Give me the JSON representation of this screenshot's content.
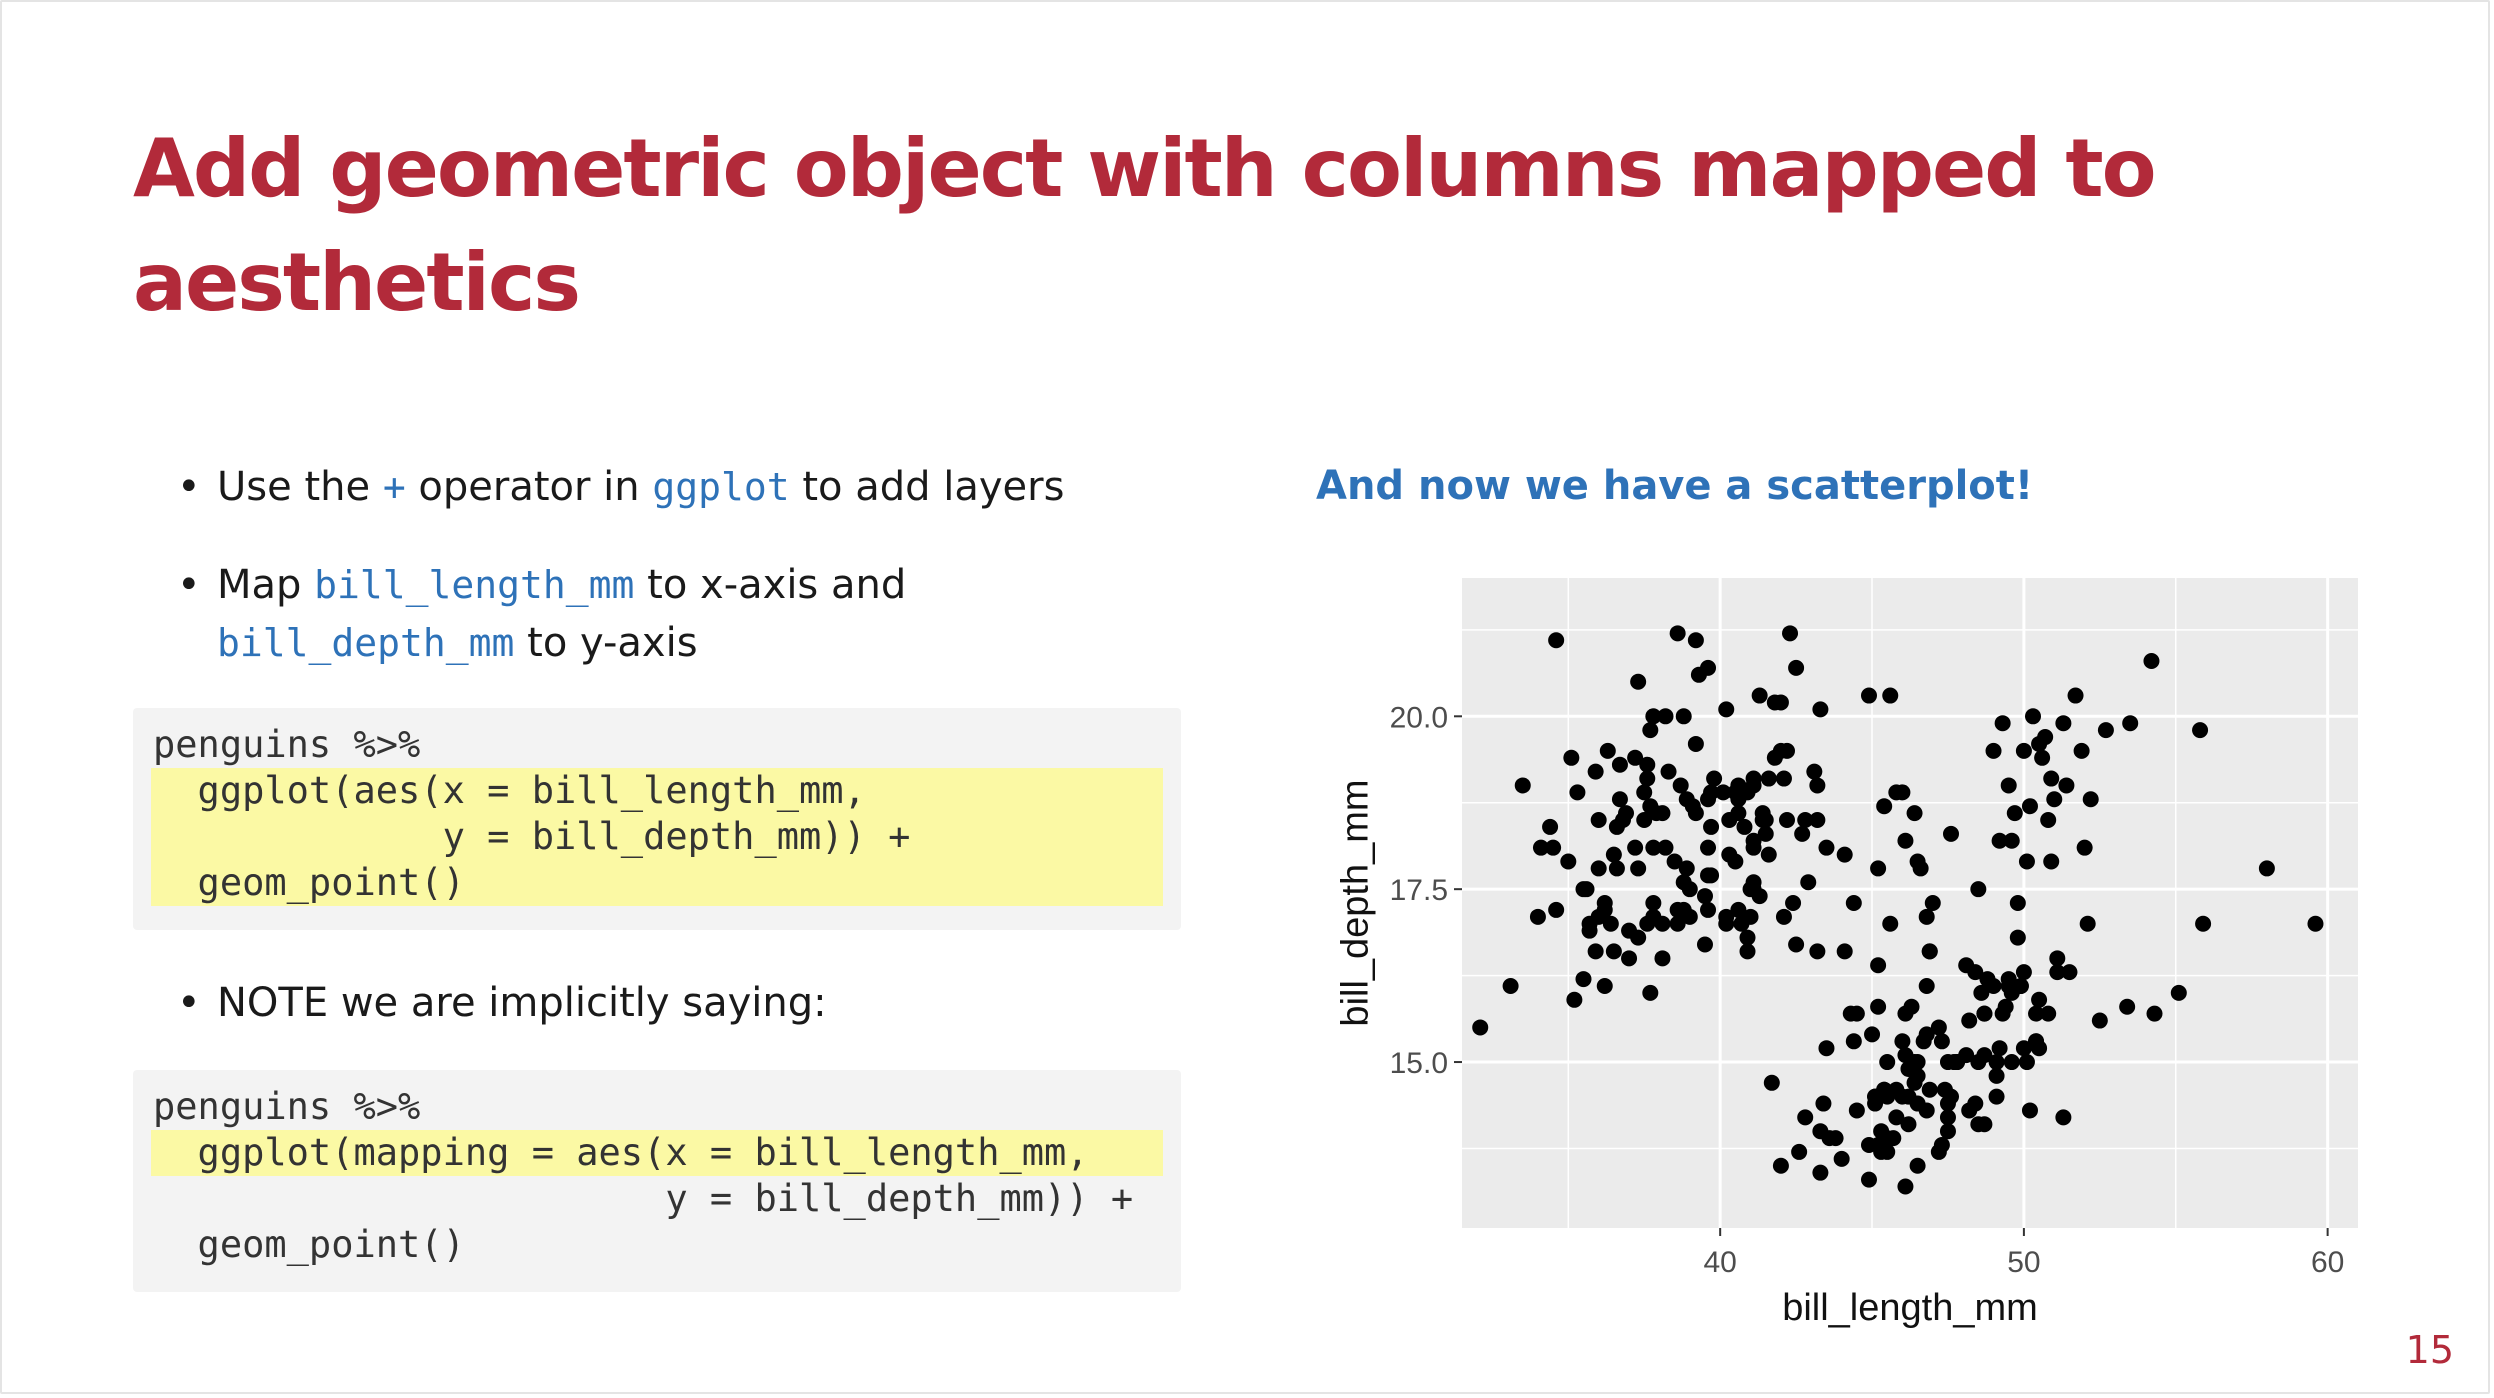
{
  "slide": {
    "title_line1": "Add geometric object with columns mapped to",
    "title_line2": "aesthetics",
    "page_number": "15"
  },
  "bullets": {
    "b1": {
      "pre": "Use the ",
      "op": "+",
      "mid": " operator in ",
      "code": "ggplot",
      "post": " to add layers"
    },
    "b2": {
      "pre": "Map ",
      "code1": "bill_length_mm",
      "mid": " to x-axis and",
      "code2": "bill_depth_mm",
      "post": " to y-axis"
    },
    "b3": {
      "text": "NOTE we are implicitly saying:"
    }
  },
  "code_block_1": [
    "penguins %>%",
    "  ggplot(aes(x = bill_length_mm,",
    "             y = bill_depth_mm)) +",
    "  geom_point()"
  ],
  "code_block_2": [
    "penguins %>%",
    "  ggplot(mapping = aes(x = bill_length_mm,",
    "                       y = bill_depth_mm)) +",
    "  geom_point()"
  ],
  "right": {
    "subhead": "And now we have a scatterplot!"
  },
  "chart_data": {
    "type": "scatter",
    "xlabel": "bill_length_mm",
    "ylabel": "bill_depth_mm",
    "xlim": [
      31.5,
      61.0
    ],
    "ylim": [
      12.6,
      22.0
    ],
    "x_ticks": [
      40,
      50,
      60
    ],
    "x_tick_labels": [
      "40",
      "50",
      "60"
    ],
    "y_ticks": [
      15.0,
      17.5,
      20.0
    ],
    "y_tick_labels": [
      "15.0",
      "17.5",
      "20.0"
    ],
    "grid": true,
    "panel_color": "#ebebeb",
    "point_color": "#000000",
    "points": [
      [
        32.1,
        15.5
      ],
      [
        33.1,
        16.1
      ],
      [
        33.5,
        19.0
      ],
      [
        34.0,
        17.1
      ],
      [
        34.1,
        18.1
      ],
      [
        34.4,
        18.4
      ],
      [
        34.5,
        18.1
      ],
      [
        34.6,
        17.2
      ],
      [
        34.6,
        21.1
      ],
      [
        35.0,
        17.9
      ],
      [
        35.1,
        19.4
      ],
      [
        35.2,
        15.9
      ],
      [
        35.3,
        18.9
      ],
      [
        35.5,
        16.2
      ],
      [
        35.5,
        17.5
      ],
      [
        35.6,
        17.5
      ],
      [
        35.7,
        16.9
      ],
      [
        35.7,
        17.0
      ],
      [
        35.9,
        16.6
      ],
      [
        35.9,
        19.2
      ],
      [
        36.0,
        17.1
      ],
      [
        36.0,
        17.8
      ],
      [
        36.0,
        18.5
      ],
      [
        36.2,
        16.1
      ],
      [
        36.2,
        17.2
      ],
      [
        36.2,
        17.3
      ],
      [
        36.3,
        19.5
      ],
      [
        36.4,
        17.0
      ],
      [
        36.5,
        16.6
      ],
      [
        36.5,
        18.0
      ],
      [
        36.6,
        17.8
      ],
      [
        36.6,
        18.4
      ],
      [
        36.7,
        18.8
      ],
      [
        36.7,
        19.3
      ],
      [
        36.8,
        18.5
      ],
      [
        36.9,
        18.6
      ],
      [
        37.0,
        16.5
      ],
      [
        37.0,
        16.9
      ],
      [
        37.2,
        18.1
      ],
      [
        37.2,
        19.4
      ],
      [
        37.3,
        16.8
      ],
      [
        37.3,
        17.8
      ],
      [
        37.3,
        20.5
      ],
      [
        37.5,
        18.5
      ],
      [
        37.5,
        18.9
      ],
      [
        37.6,
        17.0
      ],
      [
        37.6,
        19.1
      ],
      [
        37.6,
        19.3
      ],
      [
        37.7,
        16.0
      ],
      [
        37.7,
        18.7
      ],
      [
        37.7,
        19.8
      ],
      [
        37.8,
        17.1
      ],
      [
        37.8,
        17.3
      ],
      [
        37.8,
        18.1
      ],
      [
        37.8,
        20.0
      ],
      [
        37.9,
        18.6
      ],
      [
        38.1,
        16.5
      ],
      [
        38.1,
        17.0
      ],
      [
        38.1,
        18.6
      ],
      [
        38.2,
        18.1
      ],
      [
        38.2,
        20.0
      ],
      [
        38.3,
        19.2
      ],
      [
        38.5,
        17.9
      ],
      [
        38.6,
        17.0
      ],
      [
        38.6,
        17.2
      ],
      [
        38.6,
        21.2
      ],
      [
        38.7,
        19.0
      ],
      [
        38.8,
        17.2
      ],
      [
        38.8,
        17.6
      ],
      [
        38.8,
        20.0
      ],
      [
        38.9,
        17.8
      ],
      [
        38.9,
        18.8
      ],
      [
        39.0,
        17.1
      ],
      [
        39.0,
        17.5
      ],
      [
        39.1,
        18.7
      ],
      [
        39.2,
        18.6
      ],
      [
        39.2,
        19.6
      ],
      [
        39.2,
        21.1
      ],
      [
        39.3,
        20.6
      ],
      [
        39.5,
        16.7
      ],
      [
        39.5,
        17.4
      ],
      [
        39.6,
        17.2
      ],
      [
        39.6,
        17.7
      ],
      [
        39.6,
        18.1
      ],
      [
        39.6,
        18.8
      ],
      [
        39.6,
        20.7
      ],
      [
        39.7,
        17.7
      ],
      [
        39.7,
        18.4
      ],
      [
        39.7,
        18.9
      ],
      [
        39.8,
        19.1
      ],
      [
        40.1,
        18.9
      ],
      [
        40.2,
        17.0
      ],
      [
        40.2,
        17.1
      ],
      [
        40.2,
        20.1
      ],
      [
        40.3,
        18.0
      ],
      [
        40.3,
        18.5
      ],
      [
        40.5,
        17.9
      ],
      [
        40.5,
        18.9
      ],
      [
        40.6,
        17.2
      ],
      [
        40.6,
        18.6
      ],
      [
        40.6,
        18.8
      ],
      [
        40.6,
        19.0
      ],
      [
        40.7,
        17.0
      ],
      [
        40.8,
        18.4
      ],
      [
        40.8,
        18.9
      ],
      [
        40.9,
        16.6
      ],
      [
        40.9,
        16.8
      ],
      [
        40.9,
        18.9
      ],
      [
        41.0,
        17.1
      ],
      [
        41.0,
        17.5
      ],
      [
        41.1,
        17.5
      ],
      [
        41.1,
        17.6
      ],
      [
        41.1,
        18.1
      ],
      [
        41.1,
        18.2
      ],
      [
        41.1,
        19.0
      ],
      [
        41.1,
        19.1
      ],
      [
        41.3,
        17.4
      ],
      [
        41.3,
        20.3
      ],
      [
        41.4,
        18.5
      ],
      [
        41.4,
        18.6
      ],
      [
        41.5,
        18.3
      ],
      [
        41.5,
        18.5
      ],
      [
        41.6,
        18.0
      ],
      [
        41.6,
        19.1
      ],
      [
        41.7,
        14.7
      ],
      [
        41.8,
        19.4
      ],
      [
        41.8,
        20.2
      ],
      [
        42.0,
        19.5
      ],
      [
        42.0,
        20.2
      ],
      [
        42.1,
        17.1
      ],
      [
        42.1,
        19.1
      ],
      [
        42.2,
        18.5
      ],
      [
        42.2,
        19.5
      ],
      [
        42.3,
        21.2
      ],
      [
        42.4,
        17.3
      ],
      [
        42.5,
        16.7
      ],
      [
        42.5,
        20.7
      ],
      [
        42.7,
        18.3
      ],
      [
        42.8,
        18.5
      ],
      [
        42.9,
        17.6
      ],
      [
        43.1,
        19.2
      ],
      [
        43.2,
        18.5
      ],
      [
        43.2,
        19.0
      ],
      [
        43.3,
        20.1
      ],
      [
        43.4,
        14.4
      ],
      [
        43.5,
        18.1
      ],
      [
        43.8,
        13.9
      ],
      [
        44.1,
        18.0
      ],
      [
        44.4,
        17.3
      ],
      [
        44.5,
        15.7
      ],
      [
        44.9,
        20.3
      ],
      [
        45.2,
        17.8
      ],
      [
        45.3,
        13.7
      ],
      [
        45.4,
        18.7
      ],
      [
        45.5,
        13.7
      ],
      [
        45.6,
        20.3
      ],
      [
        45.6,
        17.0
      ],
      [
        45.8,
        18.9
      ],
      [
        46.0,
        18.9
      ],
      [
        46.1,
        13.2
      ],
      [
        46.2,
        14.5
      ],
      [
        46.4,
        18.6
      ],
      [
        46.5,
        17.9
      ],
      [
        46.6,
        17.8
      ],
      [
        46.8,
        17.1
      ],
      [
        46.9,
        16.6
      ],
      [
        47.0,
        17.3
      ],
      [
        47.5,
        15.0
      ],
      [
        47.5,
        14.2
      ],
      [
        47.6,
        18.3
      ],
      [
        47.7,
        15.0
      ],
      [
        47.8,
        15.0
      ],
      [
        48.1,
        16.4
      ],
      [
        48.2,
        14.3
      ],
      [
        48.4,
        16.3
      ],
      [
        48.5,
        15.0
      ],
      [
        48.7,
        15.7
      ],
      [
        49.0,
        19.5
      ],
      [
        49.1,
        15.0
      ],
      [
        49.2,
        18.2
      ],
      [
        49.3,
        19.9
      ],
      [
        49.5,
        19.0
      ],
      [
        49.6,
        18.2
      ],
      [
        49.7,
        18.6
      ],
      [
        49.8,
        17.3
      ],
      [
        50.0,
        19.5
      ],
      [
        50.1,
        17.9
      ],
      [
        50.2,
        18.7
      ],
      [
        50.3,
        20.0
      ],
      [
        50.4,
        15.3
      ],
      [
        50.5,
        19.6
      ],
      [
        50.6,
        19.4
      ],
      [
        50.7,
        19.7
      ],
      [
        50.8,
        18.5
      ],
      [
        51.0,
        18.8
      ],
      [
        51.1,
        16.5
      ],
      [
        51.3,
        19.9
      ],
      [
        51.4,
        19.0
      ],
      [
        51.5,
        16.3
      ],
      [
        51.7,
        20.3
      ],
      [
        51.9,
        19.5
      ],
      [
        52.0,
        18.1
      ],
      [
        52.2,
        18.8
      ],
      [
        52.7,
        19.8
      ],
      [
        53.5,
        19.9
      ],
      [
        54.2,
        20.8
      ],
      [
        55.8,
        19.8
      ],
      [
        58.0,
        17.8
      ],
      [
        46.1,
        18.2
      ],
      [
        43.3,
        13.4
      ],
      [
        42.8,
        14.2
      ],
      [
        45.1,
        14.5
      ],
      [
        46.5,
        13.5
      ],
      [
        45.4,
        14.6
      ],
      [
        43.3,
        14.0
      ],
      [
        46.3,
        15.8
      ],
      [
        45.7,
        13.9
      ],
      [
        46.7,
        15.3
      ],
      [
        45.5,
        14.5
      ],
      [
        46.1,
        15.1
      ],
      [
        44.5,
        14.3
      ],
      [
        47.8,
        15.0
      ],
      [
        44.0,
        13.6
      ],
      [
        46.9,
        14.6
      ],
      [
        45.2,
        15.8
      ],
      [
        48.7,
        14.1
      ],
      [
        47.2,
        13.7
      ],
      [
        44.9,
        13.3
      ],
      [
        45.2,
        13.8
      ],
      [
        46.0,
        14.5
      ],
      [
        45.5,
        15.0
      ],
      [
        48.1,
        15.1
      ],
      [
        45.1,
        14.4
      ],
      [
        46.5,
        14.4
      ],
      [
        45.8,
        14.6
      ],
      [
        48.7,
        15.1
      ],
      [
        50.0,
        15.2
      ],
      [
        47.6,
        14.5
      ],
      [
        46.5,
        15.0
      ],
      [
        45.4,
        14.6
      ],
      [
        49.0,
        16.1
      ],
      [
        48.4,
        14.4
      ],
      [
        44.9,
        13.8
      ],
      [
        46.4,
        15.0
      ],
      [
        47.3,
        15.3
      ],
      [
        42.0,
        13.5
      ],
      [
        48.7,
        15.7
      ],
      [
        46.8,
        15.4
      ],
      [
        45.5,
        13.9
      ],
      [
        49.2,
        15.2
      ],
      [
        47.2,
        15.5
      ],
      [
        46.5,
        14.8
      ],
      [
        49.1,
        14.8
      ],
      [
        42.6,
        13.7
      ],
      [
        44.4,
        15.3
      ],
      [
        50.5,
        15.9
      ],
      [
        49.5,
        16.2
      ],
      [
        46.2,
        14.1
      ],
      [
        46.8,
        14.3
      ],
      [
        45.2,
        16.4
      ],
      [
        49.9,
        16.1
      ],
      [
        50.0,
        16.3
      ],
      [
        47.5,
        14.0
      ],
      [
        48.6,
        16.0
      ],
      [
        50.5,
        15.2
      ],
      [
        43.5,
        15.2
      ],
      [
        50.8,
        15.7
      ],
      [
        46.2,
        14.9
      ],
      [
        50.1,
        15.0
      ],
      [
        45.1,
        14.5
      ],
      [
        46.8,
        16.1
      ],
      [
        50.2,
        14.3
      ],
      [
        49.1,
        14.5
      ],
      [
        47.4,
        14.6
      ],
      [
        48.2,
        15.6
      ],
      [
        49.8,
        16.8
      ],
      [
        49.6,
        16.0
      ],
      [
        43.6,
        13.9
      ],
      [
        45.3,
        13.8
      ],
      [
        49.3,
        15.7
      ],
      [
        46.4,
        14.7
      ],
      [
        51.3,
        14.2
      ],
      [
        46.9,
        16.6
      ],
      [
        45.8,
        14.2
      ],
      [
        52.1,
        17.0
      ],
      [
        52.5,
        15.6
      ],
      [
        53.4,
        15.8
      ],
      [
        55.1,
        16.0
      ],
      [
        54.3,
        15.7
      ],
      [
        55.9,
        17.0
      ],
      [
        59.6,
        17.0
      ],
      [
        49.4,
        15.8
      ],
      [
        48.8,
        16.2
      ],
      [
        49.6,
        15.0
      ],
      [
        47.3,
        13.8
      ],
      [
        50.9,
        17.9
      ],
      [
        50.4,
        15.7
      ],
      [
        50.9,
        19.1
      ],
      [
        45.0,
        15.4
      ],
      [
        46.0,
        15.3
      ],
      [
        48.5,
        14.1
      ],
      [
        47.5,
        14.4
      ],
      [
        44.3,
        15.7
      ],
      [
        43.2,
        16.6
      ],
      [
        51.1,
        16.3
      ],
      [
        48.5,
        17.5
      ],
      [
        50.4,
        15.3
      ],
      [
        49.9,
        16.1
      ],
      [
        45.3,
        14.0
      ],
      [
        49.5,
        16.1
      ],
      [
        44.1,
        16.6
      ],
      [
        46.1,
        15.7
      ]
    ]
  }
}
